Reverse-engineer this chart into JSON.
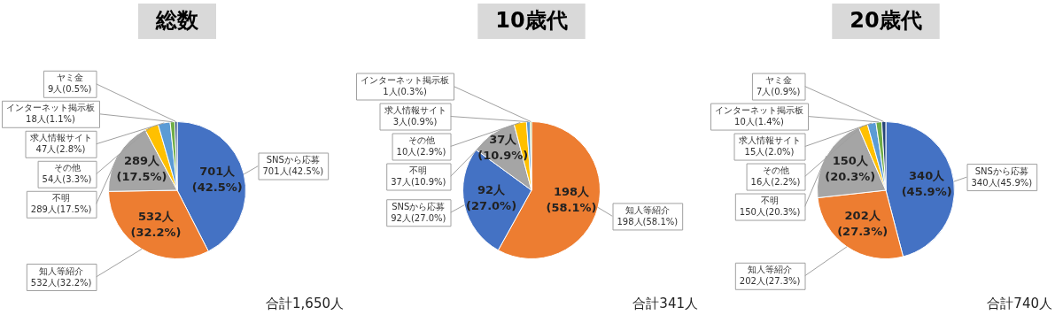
{
  "chart_data": [
    {
      "type": "pie",
      "title": "総数",
      "legend": false,
      "categories": [
        "SNSから応募",
        "知人等紹介",
        "不明",
        "その他",
        "求人情報サイト",
        "インターネット掲示板",
        "ヤミ金"
      ],
      "values": [
        701,
        532,
        289,
        54,
        47,
        18,
        9
      ],
      "colors": [
        "#4472c4",
        "#ed7d31",
        "#a5a5a5",
        "#ffc000",
        "#5b9bd5",
        "#70ad47",
        "#264478"
      ],
      "value_labels": [
        "701人(42.5%)",
        "532人(32.2%)",
        "289人(17.5%)",
        "54人(3.3%)",
        "47人(2.8%)",
        "18人(1.1%)",
        "9人(0.5%)"
      ],
      "annotations": [
        "合計1,650人"
      ]
    },
    {
      "type": "pie",
      "title": "10歳代",
      "legend": false,
      "categories": [
        "知人等紹介",
        "SNSから応募",
        "不明",
        "その他",
        "求人情報サイト",
        "インターネット掲示板"
      ],
      "values": [
        198,
        92,
        37,
        10,
        3,
        1
      ],
      "colors": [
        "#ed7d31",
        "#4472c4",
        "#a5a5a5",
        "#ffc000",
        "#5b9bd5",
        "#70ad47"
      ],
      "value_labels": [
        "198人(58.1%)",
        "92人(27.0%)",
        "37人(10.9%)",
        "10人(2.9%)",
        "3人(0.9%)",
        "1人(0.3%)"
      ],
      "annotations": [
        "合計341人"
      ]
    },
    {
      "type": "pie",
      "title": "20歳代",
      "legend": false,
      "categories": [
        "SNSから応募",
        "知人等紹介",
        "不明",
        "その他",
        "求人情報サイト",
        "インターネット掲示板",
        "ヤミ金"
      ],
      "values": [
        340,
        202,
        150,
        16,
        15,
        10,
        7
      ],
      "colors": [
        "#4472c4",
        "#ed7d31",
        "#a5a5a5",
        "#ffc000",
        "#5b9bd5",
        "#70ad47",
        "#264478"
      ],
      "value_labels": [
        "340人(45.9%)",
        "202人(27.3%)",
        "150人(20.3%)",
        "16人(2.2%)",
        "15人(2.0%)",
        "10人(1.4%)",
        "7人(0.9%)"
      ],
      "annotations": [
        "合計740人"
      ]
    }
  ]
}
